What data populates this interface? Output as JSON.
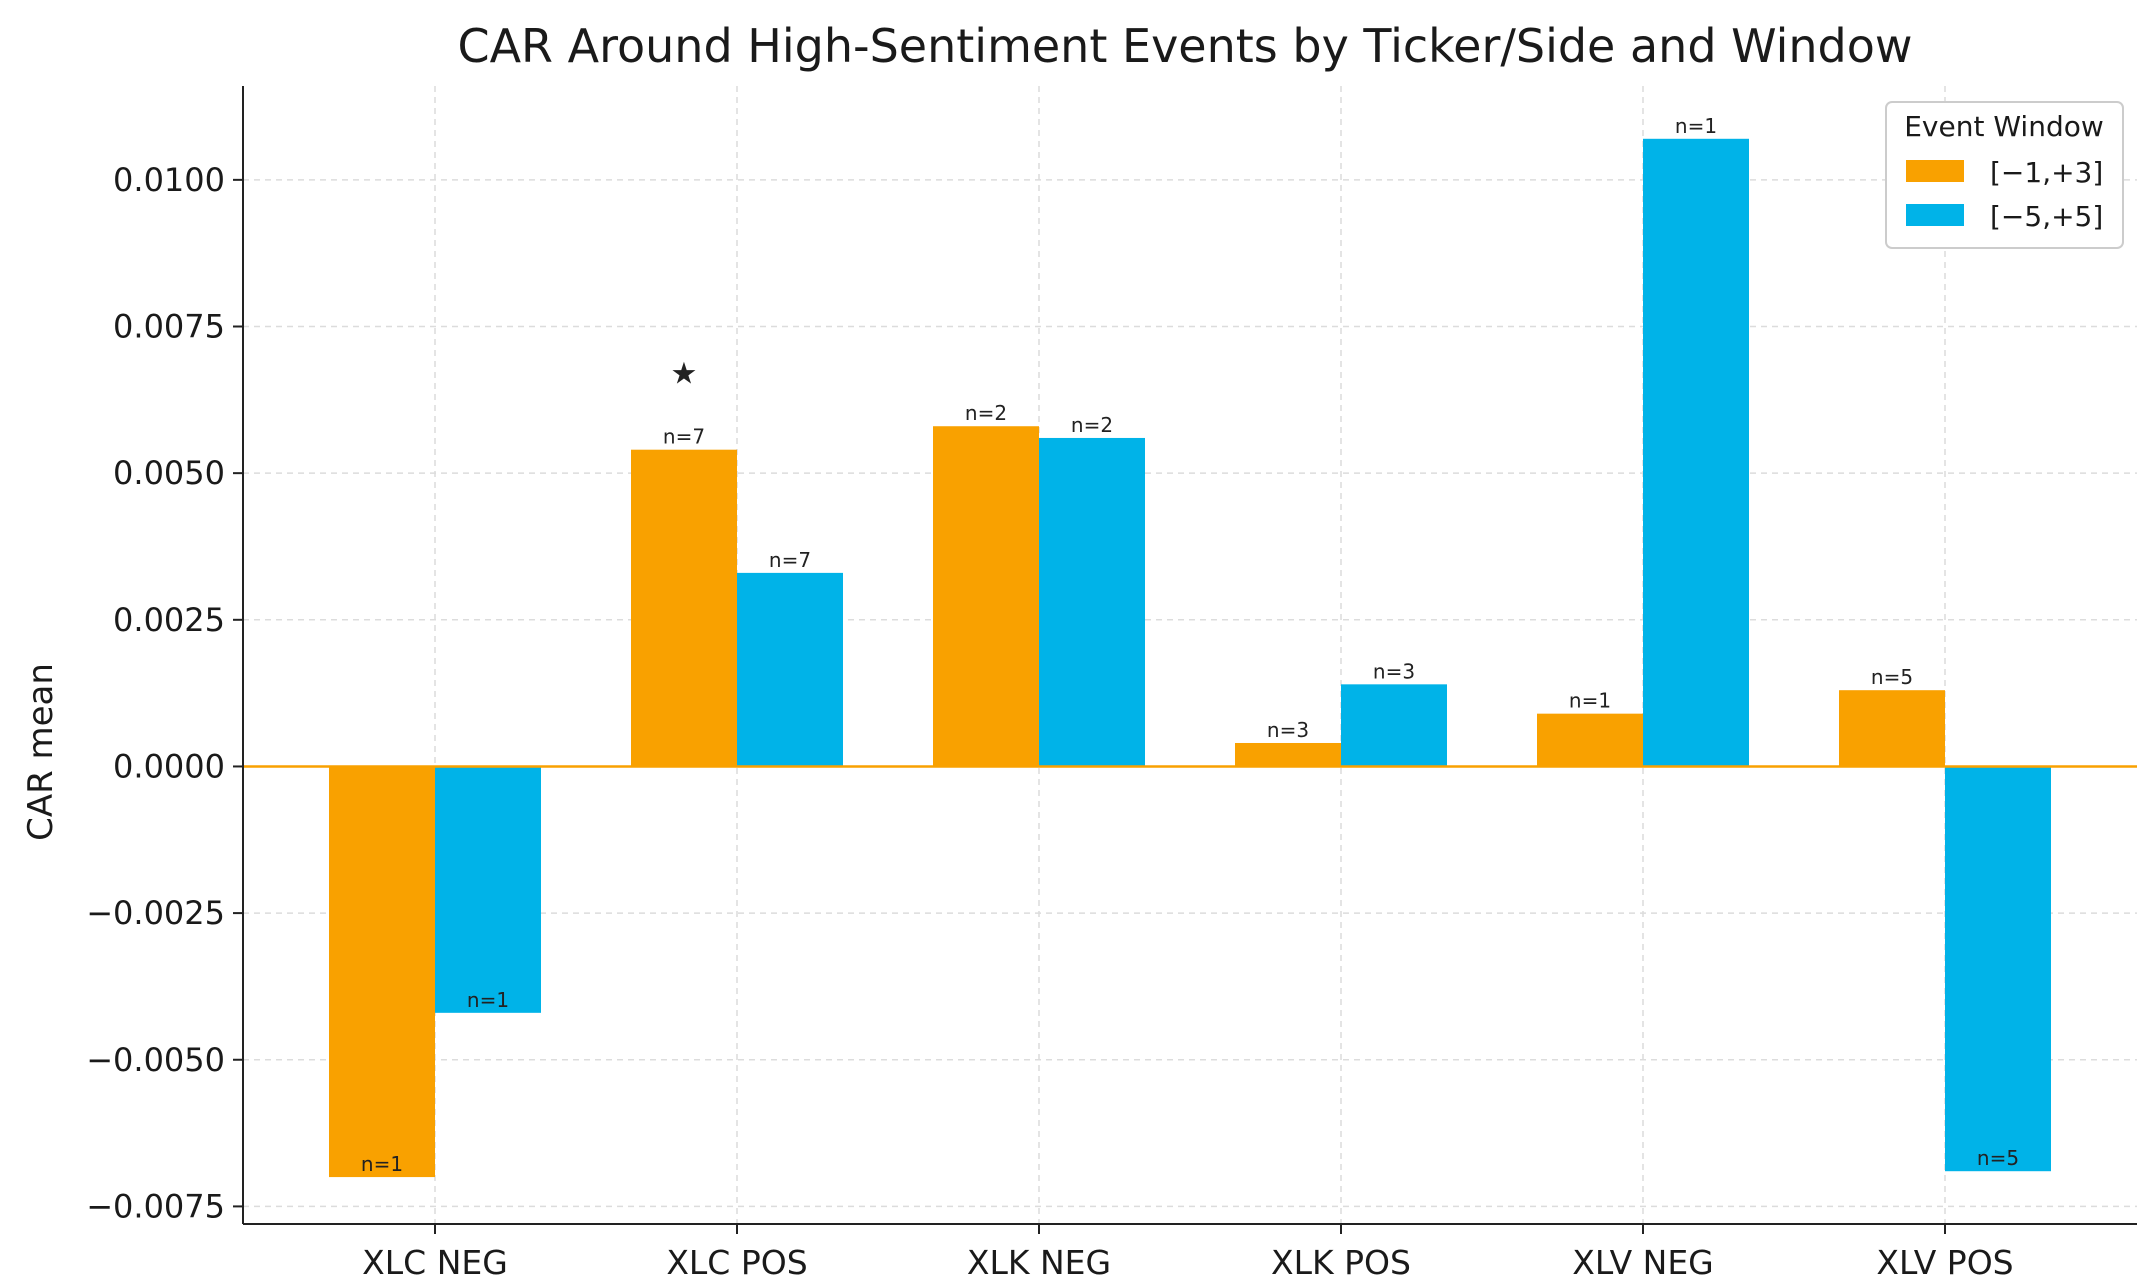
{
  "chart_data": {
    "type": "bar",
    "title": "CAR Around High-Sentiment Events by Ticker/Side and Window",
    "xlabel": "",
    "ylabel": "CAR mean",
    "ylim": [
      -0.0078,
      0.0116
    ],
    "yticks": [
      -0.0075,
      -0.005,
      -0.0025,
      0.0,
      0.0025,
      0.005,
      0.0075,
      0.01
    ],
    "ytick_labels": [
      "−0.0075",
      "−0.0050",
      "−0.0025",
      "0.0000",
      "0.0025",
      "0.0050",
      "0.0075",
      "0.0100"
    ],
    "categories": [
      "XLC NEG",
      "XLC POS",
      "XLK NEG",
      "XLK POS",
      "XLV NEG",
      "XLV POS"
    ],
    "grid": true,
    "legend": {
      "title": "Event Window",
      "placement": "top-right"
    },
    "series": [
      {
        "name": "[−1,+3]",
        "color": "#f9a100",
        "values": [
          -0.007,
          0.0054,
          0.0058,
          0.0004,
          0.0009,
          0.0013
        ],
        "n_labels": [
          "n=1",
          "n=7",
          "n=2",
          "n=3",
          "n=1",
          "n=5"
        ]
      },
      {
        "name": "[−5,+5]",
        "color": "#00b3e8",
        "values": [
          -0.0042,
          0.0033,
          0.0056,
          0.0014,
          0.0107,
          -0.0069
        ],
        "n_labels": [
          "n=1",
          "n=7",
          "n=2",
          "n=3",
          "n=1",
          "n=5"
        ]
      }
    ],
    "annotations": [
      {
        "category": "XLC POS",
        "series": 0,
        "symbol": "★",
        "value": 0.0067
      }
    ],
    "zero_line_color": "#f9a100"
  }
}
